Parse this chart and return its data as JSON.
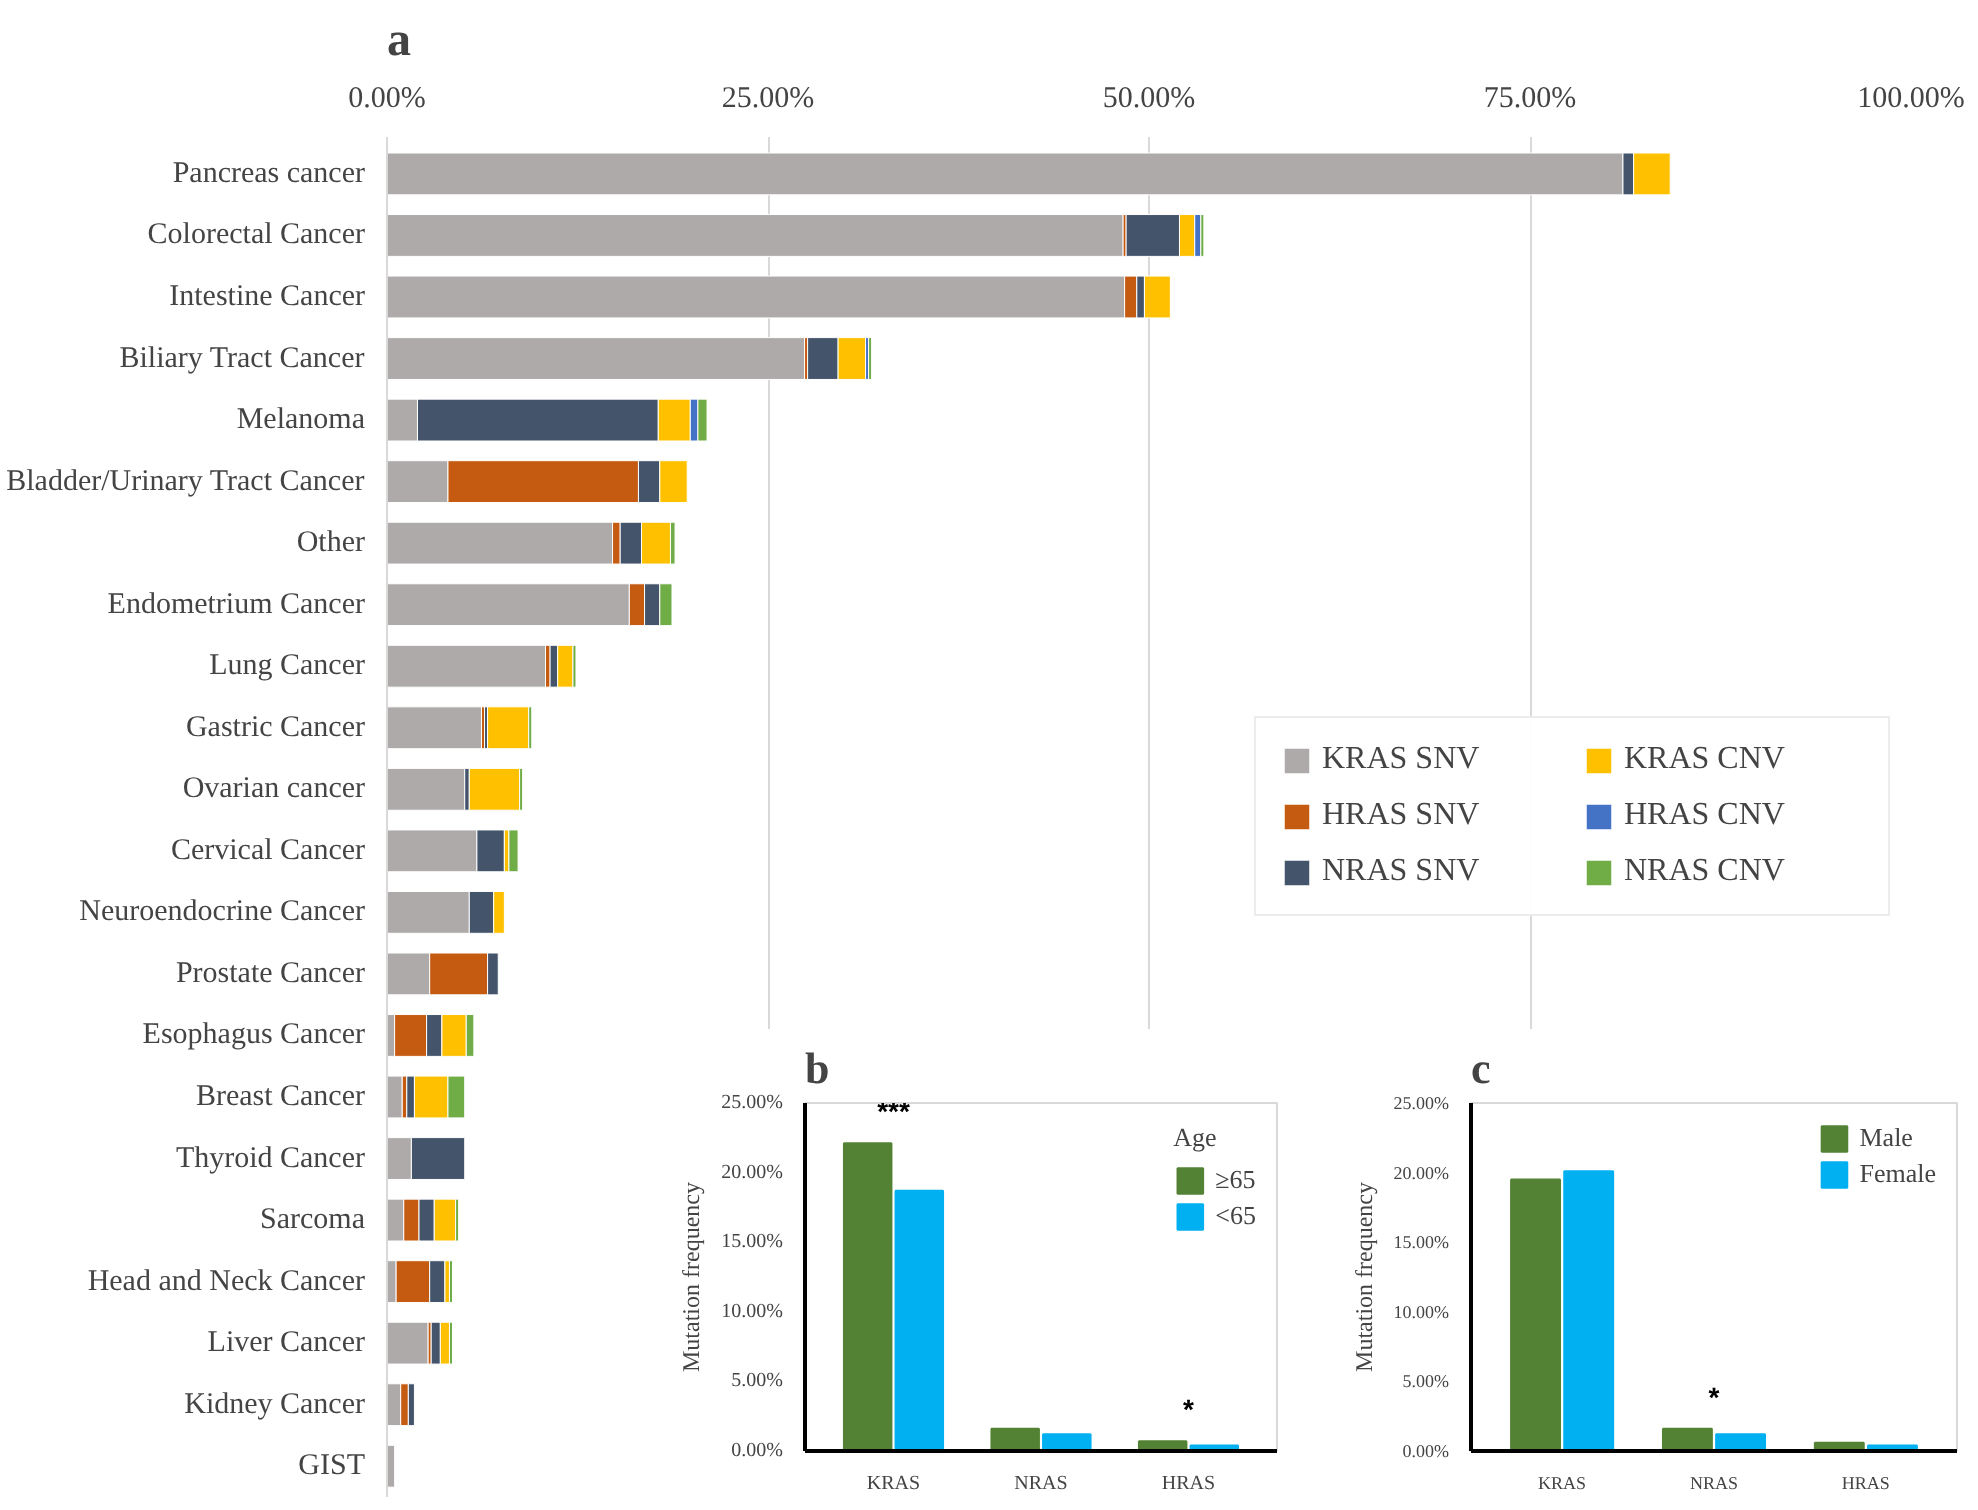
{
  "chart_data": [
    {
      "type": "bar",
      "title": "a",
      "orientation": "horizontal",
      "stacked": true,
      "grid": "x",
      "legend": "right",
      "categories": [
        "Pancreas cancer",
        "Colorectal Cancer",
        "Intestine Cancer",
        "Biliary Tract Cancer",
        "Melanoma",
        "Bladder/Urinary Tract Cancer",
        "Other",
        "Endometrium Cancer",
        "Lung Cancer",
        "Gastric Cancer",
        "Ovarian cancer",
        "Cervical Cancer",
        "Neuroendocrine Cancer",
        "Prostate Cancer",
        "Esophagus Cancer",
        "Breast Cancer",
        "Thyroid Cancer",
        "Sarcoma",
        "Head and Neck Cancer",
        "Liver Cancer",
        "Kidney Cancer",
        "GIST"
      ],
      "xlim": [
        0,
        100
      ],
      "xticks": [
        {
          "value": 0,
          "label": "0.00%"
        },
        {
          "value": 25,
          "label": "25.00%"
        },
        {
          "value": 50,
          "label": "50.00%"
        },
        {
          "value": 75,
          "label": "75.00%"
        },
        {
          "value": 100,
          "label": "100.00%"
        }
      ],
      "series": [
        {
          "name": "KRAS SNV",
          "color": "#aeaaaa",
          "values": [
            81.1,
            48.3,
            48.4,
            27.4,
            2.0,
            4.0,
            14.8,
            15.9,
            10.4,
            6.2,
            5.1,
            5.9,
            5.4,
            2.8,
            0.5,
            1.0,
            1.6,
            1.1,
            0.6,
            2.7,
            0.9,
            0.5
          ]
        },
        {
          "name": "HRAS SNV",
          "color": "#c55a11",
          "values": [
            null,
            0.2,
            0.8,
            0.2,
            null,
            12.5,
            0.5,
            1.0,
            0.3,
            0.2,
            null,
            null,
            null,
            3.8,
            2.1,
            0.3,
            null,
            1.0,
            2.2,
            0.2,
            0.5,
            null
          ]
        },
        {
          "name": "NRAS SNV",
          "color": "#44546a",
          "values": [
            0.7,
            3.5,
            0.5,
            2.0,
            15.8,
            1.4,
            1.4,
            1.0,
            0.5,
            0.2,
            0.3,
            1.8,
            1.6,
            0.7,
            1.0,
            0.5,
            3.5,
            1.0,
            1.0,
            0.6,
            0.4,
            null
          ]
        },
        {
          "name": "KRAS CNV",
          "color": "#ffc000",
          "values": [
            2.4,
            1.0,
            1.7,
            1.8,
            2.1,
            1.8,
            1.9,
            null,
            1.0,
            2.7,
            3.3,
            0.3,
            0.7,
            null,
            1.6,
            2.2,
            null,
            1.4,
            0.3,
            0.6,
            null,
            null
          ]
        },
        {
          "name": "HRAS CNV",
          "color": "#4472c4",
          "values": [
            null,
            0.4,
            null,
            0.2,
            0.5,
            null,
            null,
            null,
            null,
            null,
            null,
            null,
            null,
            null,
            null,
            null,
            null,
            null,
            null,
            null,
            null,
            null
          ]
        },
        {
          "name": "NRAS CNV",
          "color": "#70ad47",
          "values": [
            null,
            0.2,
            null,
            0.2,
            0.6,
            null,
            0.3,
            0.8,
            0.2,
            0.2,
            0.2,
            0.6,
            null,
            null,
            0.5,
            1.1,
            null,
            0.2,
            0.2,
            0.2,
            null,
            null
          ]
        }
      ]
    },
    {
      "type": "bar",
      "title": "b",
      "ylabel": "Mutation frequency",
      "legend": "top right",
      "legend_title": "Age",
      "grid": false,
      "categories": [
        "KRAS",
        "NRAS",
        "HRAS"
      ],
      "ylim": [
        0,
        25
      ],
      "yticks": [
        {
          "value": 0,
          "label": "0.00%"
        },
        {
          "value": 5,
          "label": "5.00%"
        },
        {
          "value": 10,
          "label": "10.00%"
        },
        {
          "value": 15,
          "label": "15.00%"
        },
        {
          "value": 20,
          "label": "20.00%"
        },
        {
          "value": 25,
          "label": "25.00%"
        }
      ],
      "series": [
        {
          "name": "≥65",
          "color": "#548235",
          "values": [
            22.1,
            1.6,
            0.7
          ]
        },
        {
          "name": "<65",
          "color": "#00b0f0",
          "values": [
            18.7,
            1.2,
            0.4
          ]
        }
      ],
      "annotations": [
        {
          "text": "***",
          "x": "KRAS",
          "y": 22.1
        },
        {
          "text": "*",
          "x": "HRAS",
          "y": 0.7
        }
      ]
    },
    {
      "type": "bar",
      "title": "c",
      "ylabel": "Mutation frequency",
      "legend": "top right",
      "grid": false,
      "categories": [
        "KRAS",
        "NRAS",
        "HRAS"
      ],
      "ylim": [
        0,
        25
      ],
      "yticks": [
        {
          "value": 0,
          "label": "0.00%"
        },
        {
          "value": 5,
          "label": "5.00%"
        },
        {
          "value": 10,
          "label": "10.00%"
        },
        {
          "value": 15,
          "label": "15.00%"
        },
        {
          "value": 20,
          "label": "20.00%"
        },
        {
          "value": 25,
          "label": "25.00%"
        }
      ],
      "series": [
        {
          "name": "Male",
          "color": "#548235",
          "values": [
            19.5,
            1.6,
            0.6
          ]
        },
        {
          "name": "Female",
          "color": "#00b0f0",
          "values": [
            20.1,
            1.2,
            0.4
          ]
        }
      ],
      "annotations": [
        {
          "text": "*",
          "x": "NRAS",
          "y": 1.6
        }
      ]
    }
  ]
}
